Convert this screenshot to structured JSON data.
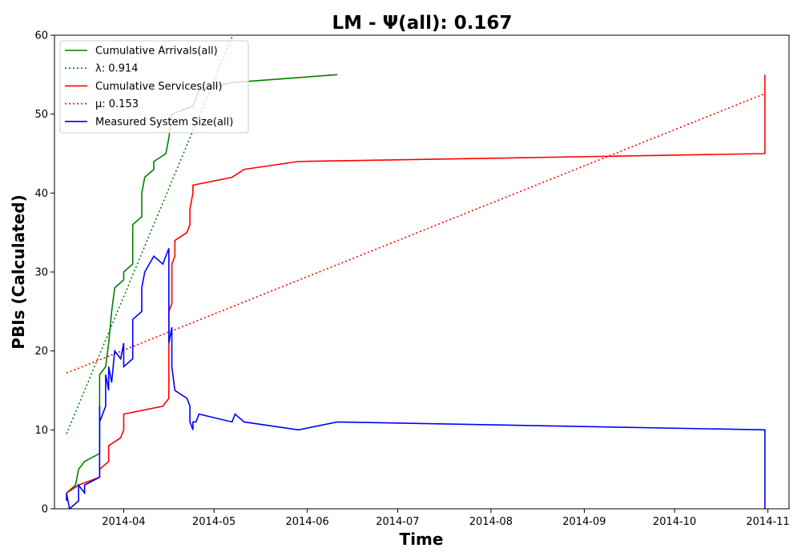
{
  "chart_data": {
    "type": "line",
    "title": "LM -  Ψ(all): 0.167",
    "xlabel": "Time",
    "ylabel": "PBIs (Calculated)",
    "xlim": [
      "2014-03-09",
      "2014-11-08"
    ],
    "ylim": [
      0,
      60
    ],
    "x_ticks": [
      "2014-04",
      "2014-05",
      "2014-06",
      "2014-07",
      "2014-08",
      "2014-09",
      "2014-10",
      "2014-11"
    ],
    "y_ticks": [
      0,
      10,
      20,
      30,
      40,
      50,
      60
    ],
    "grid": false,
    "legend_position": "upper left",
    "series": [
      {
        "name": "Cumulative Arrivals(all)",
        "color": "#008000",
        "style": "solid",
        "points": [
          [
            "2014-03-13",
            2
          ],
          [
            "2014-03-16",
            3
          ],
          [
            "2014-03-17",
            5
          ],
          [
            "2014-03-19",
            6
          ],
          [
            "2014-03-24",
            7
          ],
          [
            "2014-03-24",
            17
          ],
          [
            "2014-03-26",
            18
          ],
          [
            "2014-03-27",
            21
          ],
          [
            "2014-03-28",
            25
          ],
          [
            "2014-03-29",
            28
          ],
          [
            "2014-04-01",
            29
          ],
          [
            "2014-04-01",
            30
          ],
          [
            "2014-04-04",
            31
          ],
          [
            "2014-04-04",
            36
          ],
          [
            "2014-04-07",
            37
          ],
          [
            "2014-04-07",
            40
          ],
          [
            "2014-04-08",
            42
          ],
          [
            "2014-04-11",
            43
          ],
          [
            "2014-04-11",
            44
          ],
          [
            "2014-04-15",
            45
          ],
          [
            "2014-04-16",
            47
          ],
          [
            "2014-04-17",
            50
          ],
          [
            "2014-04-24",
            51
          ],
          [
            "2014-04-26",
            53
          ],
          [
            "2014-05-07",
            54
          ],
          [
            "2014-06-11",
            55
          ]
        ]
      },
      {
        "name": "λ: 0.914",
        "color": "#008000",
        "style": "dotted",
        "points": [
          [
            "2014-03-13",
            9.5
          ],
          [
            "2014-05-08",
            60.7
          ]
        ]
      },
      {
        "name": "Cumulative Services(all)",
        "color": "#ff0000",
        "style": "solid",
        "points": [
          [
            "2014-03-13",
            2
          ],
          [
            "2014-03-17",
            3
          ],
          [
            "2014-03-24",
            4
          ],
          [
            "2014-03-24",
            5
          ],
          [
            "2014-03-27",
            6
          ],
          [
            "2014-03-27",
            8
          ],
          [
            "2014-03-31",
            9
          ],
          [
            "2014-04-01",
            10
          ],
          [
            "2014-04-01",
            12
          ],
          [
            "2014-04-14",
            13
          ],
          [
            "2014-04-16",
            14
          ],
          [
            "2014-04-16",
            25
          ],
          [
            "2014-04-17",
            26
          ],
          [
            "2014-04-17",
            31
          ],
          [
            "2014-04-18",
            32
          ],
          [
            "2014-04-18",
            34
          ],
          [
            "2014-04-22",
            35
          ],
          [
            "2014-04-23",
            36
          ],
          [
            "2014-04-23",
            38
          ],
          [
            "2014-04-24",
            40
          ],
          [
            "2014-04-24",
            41
          ],
          [
            "2014-05-07",
            42
          ],
          [
            "2014-05-11",
            43
          ],
          [
            "2014-05-29",
            44
          ],
          [
            "2014-10-31",
            45
          ],
          [
            "2014-10-31",
            55
          ]
        ]
      },
      {
        "name": "μ: 0.153",
        "color": "#ff0000",
        "style": "dotted",
        "points": [
          [
            "2014-03-13",
            17.2
          ],
          [
            "2014-10-31",
            52.6
          ]
        ]
      },
      {
        "name": "Measured System Size(all)",
        "color": "#0000ff",
        "style": "solid",
        "points": [
          [
            "2014-03-13",
            1
          ],
          [
            "2014-03-13",
            2
          ],
          [
            "2014-03-14",
            0
          ],
          [
            "2014-03-17",
            1
          ],
          [
            "2014-03-17",
            3
          ],
          [
            "2014-03-19",
            2
          ],
          [
            "2014-03-19",
            3
          ],
          [
            "2014-03-24",
            4
          ],
          [
            "2014-03-24",
            13
          ],
          [
            "2014-03-24",
            11
          ],
          [
            "2014-03-26",
            13
          ],
          [
            "2014-03-26",
            17
          ],
          [
            "2014-03-27",
            15
          ],
          [
            "2014-03-27",
            18
          ],
          [
            "2014-03-28",
            16
          ],
          [
            "2014-03-29",
            20
          ],
          [
            "2014-03-31",
            19
          ],
          [
            "2014-04-01",
            21
          ],
          [
            "2014-04-01",
            18
          ],
          [
            "2014-04-04",
            19
          ],
          [
            "2014-04-04",
            24
          ],
          [
            "2014-04-07",
            25
          ],
          [
            "2014-04-07",
            28
          ],
          [
            "2014-04-08",
            30
          ],
          [
            "2014-04-11",
            32
          ],
          [
            "2014-04-14",
            31
          ],
          [
            "2014-04-16",
            33
          ],
          [
            "2014-04-16",
            21
          ],
          [
            "2014-04-17",
            23
          ],
          [
            "2014-04-17",
            18
          ],
          [
            "2014-04-18",
            15
          ],
          [
            "2014-04-22",
            14
          ],
          [
            "2014-04-23",
            13
          ],
          [
            "2014-04-23",
            11
          ],
          [
            "2014-04-24",
            10
          ],
          [
            "2014-04-24",
            11
          ],
          [
            "2014-04-25",
            11
          ],
          [
            "2014-04-26",
            12
          ],
          [
            "2014-05-07",
            11
          ],
          [
            "2014-05-08",
            12
          ],
          [
            "2014-05-11",
            11
          ],
          [
            "2014-05-29",
            10
          ],
          [
            "2014-06-11",
            11
          ],
          [
            "2014-10-31",
            10
          ],
          [
            "2014-10-31",
            0
          ]
        ]
      }
    ]
  }
}
